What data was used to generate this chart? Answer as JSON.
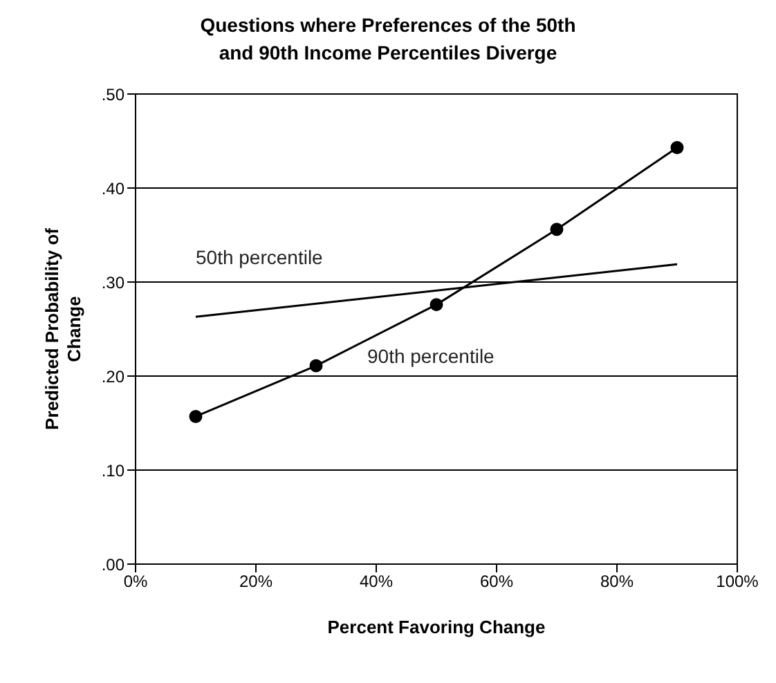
{
  "chart_data": {
    "type": "line",
    "title": "Questions where Preferences of the 50th and 90th Income Percentiles Diverge",
    "xlabel": "Percent Favoring Change",
    "ylabel": "Predicted Probability of Change",
    "series": [
      {
        "name": "50th percentile",
        "color": "#000000",
        "x": [
          10,
          90
        ],
        "values": [
          0.263,
          0.319
        ],
        "marker": "none"
      },
      {
        "name": "90th percentile",
        "color": "#000000",
        "x": [
          10,
          30,
          50,
          70,
          90
        ],
        "values": [
          0.157,
          0.211,
          0.276,
          0.356,
          0.443
        ],
        "marker": "circle"
      }
    ],
    "xlim": [
      0,
      100
    ],
    "xticks": [
      {
        "value": 0,
        "label": "0%"
      },
      {
        "value": 20,
        "label": "20%"
      },
      {
        "value": 40,
        "label": "40%"
      },
      {
        "value": 60,
        "label": "60%"
      },
      {
        "value": 80,
        "label": "80%"
      },
      {
        "value": 100,
        "label": "100%"
      }
    ],
    "ylim": [
      0,
      0.5
    ],
    "yticks": [
      {
        "value": 0,
        "label": ".00"
      },
      {
        "value": 0.1,
        "label": ".10"
      },
      {
        "value": 0.2,
        "label": ".20"
      },
      {
        "value": 0.3,
        "label": ".30"
      },
      {
        "value": 0.4,
        "label": ".40"
      },
      {
        "value": 0.5,
        "label": ".50"
      }
    ],
    "grid": "y",
    "legend": false,
    "line_style": "solid"
  }
}
